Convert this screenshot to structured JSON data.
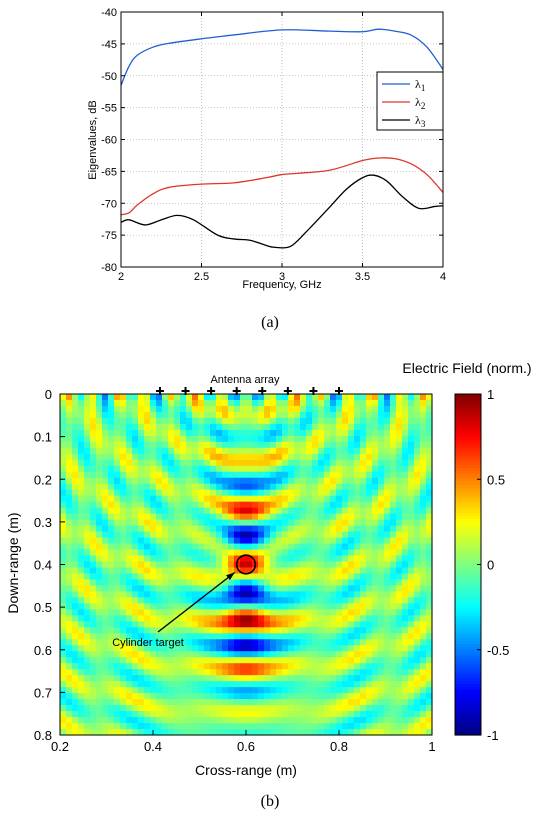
{
  "panel_a": {
    "caption": "(a)",
    "chart_data": {
      "type": "line",
      "xlabel": "Frequency, GHz",
      "ylabel": "Eigenvalues, dB",
      "xlim": [
        2,
        4
      ],
      "ylim": [
        -80,
        -40
      ],
      "xticks": [
        "2",
        "2.5",
        "3",
        "3.5",
        "4"
      ],
      "yticks": [
        "-40",
        "-45",
        "-50",
        "-55",
        "-60",
        "-65",
        "-70",
        "-75",
        "-80"
      ],
      "grid": true,
      "legend_position": "upper-right",
      "series": [
        {
          "name": "λ1",
          "legend_symbol": "λ",
          "legend_sub": "1",
          "color": "#1f5fd6",
          "x": [
            2.0,
            2.05,
            2.1,
            2.2,
            2.3,
            2.5,
            2.7,
            2.9,
            3.0,
            3.1,
            3.3,
            3.5,
            3.6,
            3.7,
            3.8,
            3.9,
            4.0
          ],
          "y": [
            -51.5,
            -48.5,
            -46.8,
            -45.5,
            -44.9,
            -44.2,
            -43.6,
            -43.0,
            -42.8,
            -42.8,
            -43.0,
            -43.1,
            -42.7,
            -43.0,
            -43.6,
            -45.5,
            -49.0
          ]
        },
        {
          "name": "λ2",
          "legend_symbol": "λ",
          "legend_sub": "2",
          "color": "#e0352b",
          "x": [
            2.0,
            2.05,
            2.1,
            2.2,
            2.3,
            2.5,
            2.7,
            2.9,
            3.0,
            3.1,
            3.3,
            3.5,
            3.6,
            3.7,
            3.8,
            3.9,
            4.0
          ],
          "y": [
            -71.8,
            -71.5,
            -70.3,
            -68.5,
            -67.5,
            -67.0,
            -66.8,
            -66.0,
            -65.5,
            -65.3,
            -64.8,
            -63.3,
            -62.9,
            -63.0,
            -63.8,
            -65.5,
            -68.3
          ]
        },
        {
          "name": "λ3",
          "legend_symbol": "λ",
          "legend_sub": "3",
          "color": "#000000",
          "x": [
            2.0,
            2.05,
            2.15,
            2.25,
            2.35,
            2.45,
            2.6,
            2.7,
            2.8,
            2.9,
            2.95,
            3.05,
            3.15,
            3.3,
            3.4,
            3.5,
            3.57,
            3.65,
            3.75,
            3.85,
            3.95,
            4.0
          ],
          "y": [
            -73.0,
            -72.6,
            -73.4,
            -72.6,
            -71.9,
            -72.6,
            -75.0,
            -75.6,
            -75.8,
            -76.6,
            -76.9,
            -76.8,
            -74.5,
            -70.5,
            -67.8,
            -66.0,
            -65.6,
            -66.5,
            -69.0,
            -70.8,
            -70.5,
            -70.4
          ]
        }
      ]
    }
  },
  "panel_b": {
    "caption": "(b)",
    "colorbar_title": "Electric Field (norm.)",
    "colorbar_ticks": [
      "1",
      "0.5",
      "0",
      "-0.5",
      "-1"
    ],
    "annotation_array": "Antenna array",
    "annotation_target": "Cylinder target",
    "chart_data": {
      "type": "heatmap",
      "xlabel": "Cross-range (m)",
      "ylabel": "Down-range (m)",
      "xlim": [
        0.2,
        1.0
      ],
      "ylim": [
        0.8,
        0.0
      ],
      "xticks": [
        "0.2",
        "0.4",
        "0.6",
        "0.8",
        "1"
      ],
      "yticks": [
        "0",
        "0.1",
        "0.2",
        "0.3",
        "0.4",
        "0.5",
        "0.6",
        "0.7",
        "0.8"
      ],
      "colorscale": "jet",
      "zlim": [
        -1,
        1
      ],
      "antenna_x_positions_m": [
        0.415,
        0.47,
        0.525,
        0.58,
        0.635,
        0.69,
        0.745,
        0.8
      ],
      "target_center_m": [
        0.6,
        0.4
      ],
      "target_radius_m": 0.02
    }
  }
}
